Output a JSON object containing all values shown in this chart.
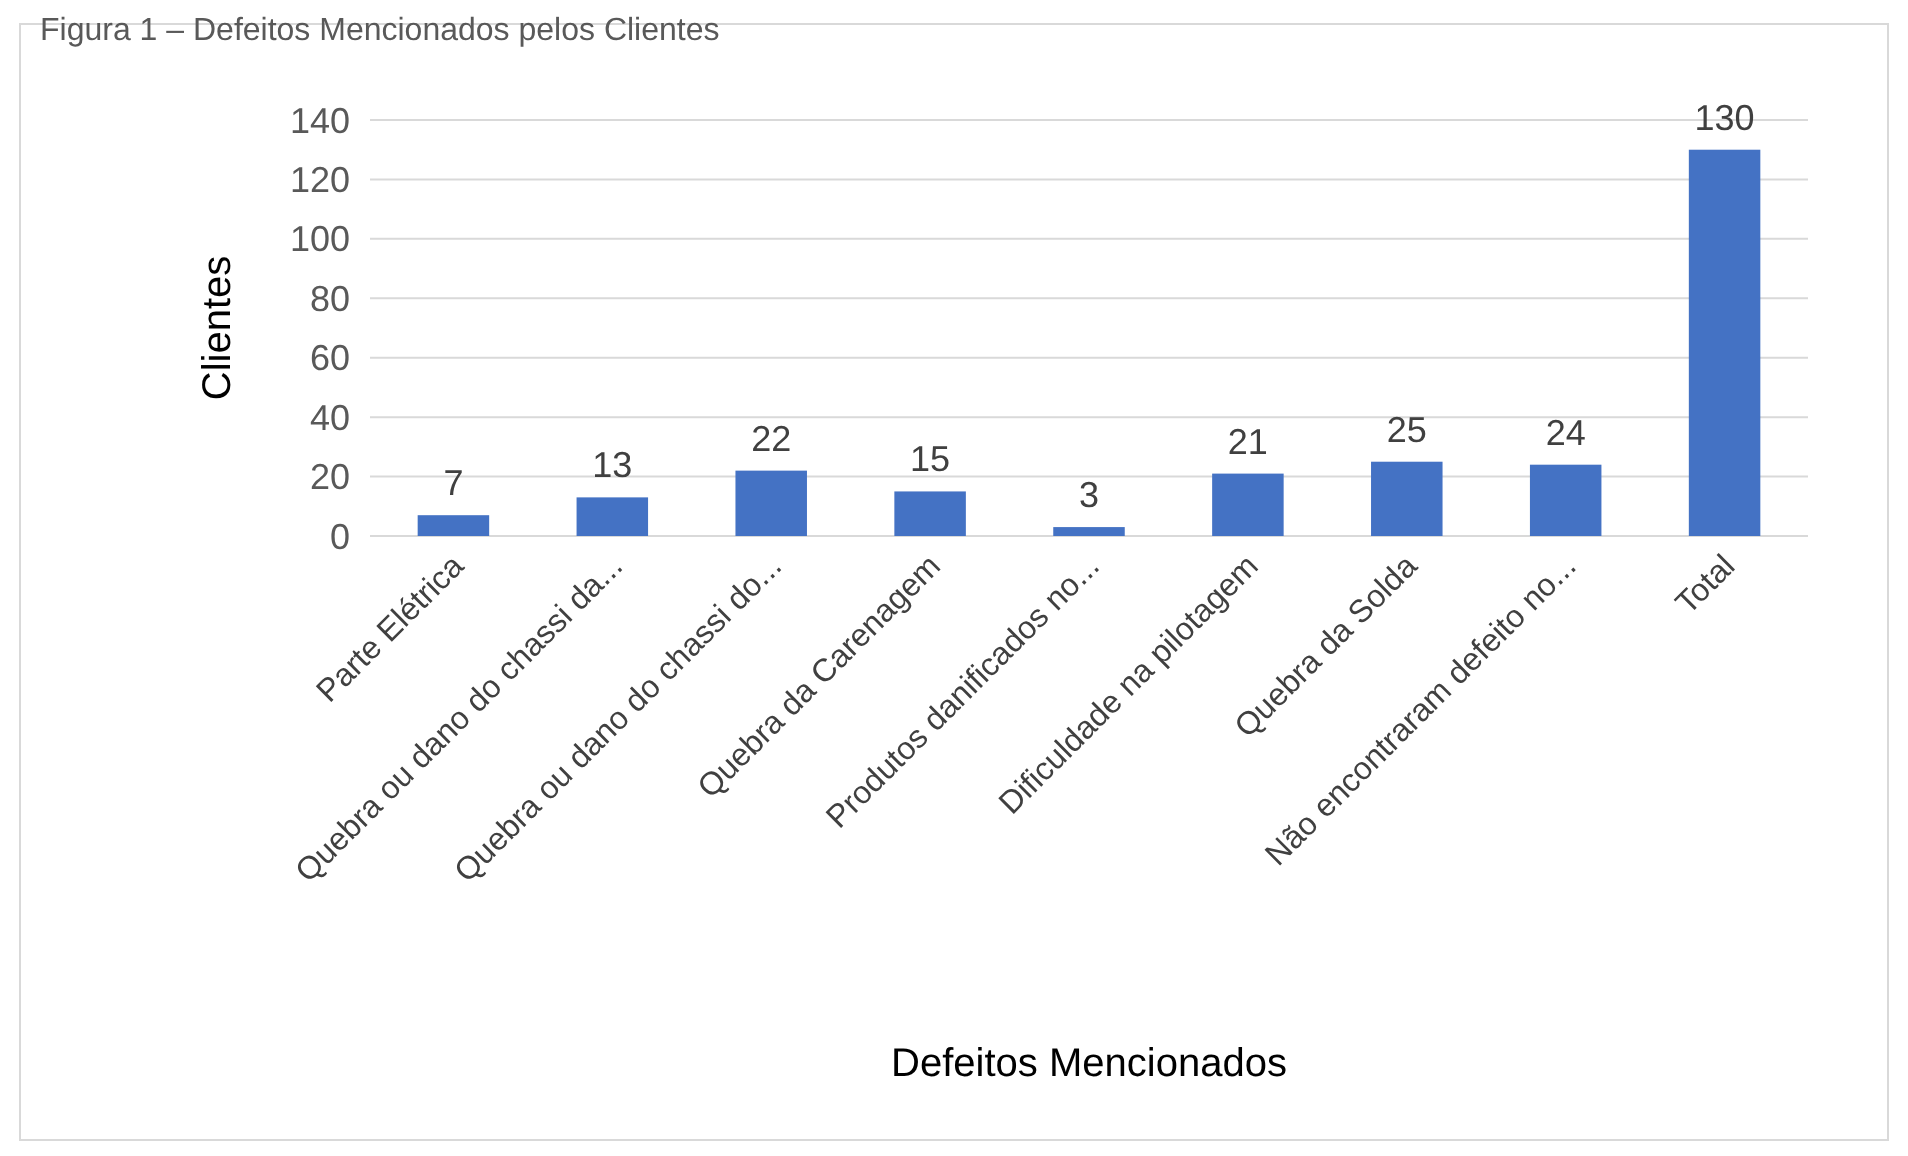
{
  "chart_data": {
    "type": "bar",
    "title": "Figura 1 – Defeitos Mencionados pelos Clientes",
    "xlabel": "Defeitos Mencionados",
    "ylabel": "Clientes",
    "categories": [
      "Parte Elétrica",
      "Quebra ou dano do chassi da...",
      "Quebra ou dano do chassi do...",
      "Quebra da Carenagem",
      "Produtos danificados no...",
      "Dificuldade na pilotagem",
      "Quebra da Solda",
      "Não encontraram defeito no...",
      "Total"
    ],
    "values": [
      7,
      13,
      22,
      15,
      3,
      21,
      25,
      24,
      130
    ],
    "color": "#4472c4",
    "ylim": [
      0,
      140
    ],
    "yticks": [
      0,
      20,
      40,
      60,
      80,
      100,
      120,
      140
    ],
    "grid": "y",
    "data_labels": true
  }
}
